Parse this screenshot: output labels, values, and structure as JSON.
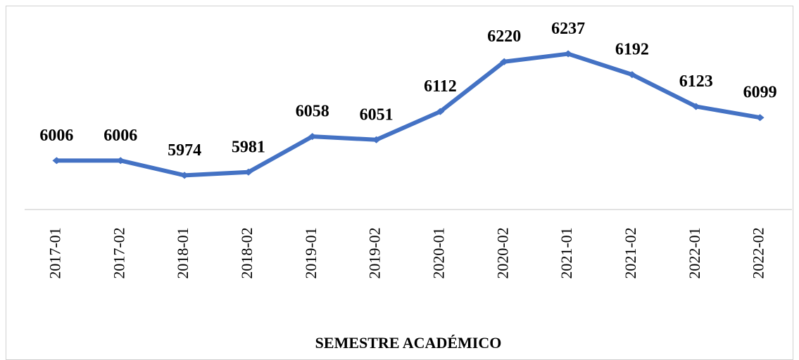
{
  "chart_data": {
    "type": "line",
    "x_label": "SEMESTRE ACADÉMICO",
    "categories": [
      "2017-01",
      "2017-02",
      "2018-01",
      "2018-02",
      "2019-01",
      "2019-02",
      "2020-01",
      "2020-02",
      "2021-01",
      "2021-02",
      "2022-01",
      "2022-02"
    ],
    "series": [
      {
        "color": "#4472c4",
        "values": [
          6006,
          6006,
          5974,
          5981,
          6058,
          6051,
          6112,
          6220,
          6237,
          6192,
          6123,
          6099
        ]
      }
    ],
    "ylim": [
      5900,
      6250
    ]
  }
}
